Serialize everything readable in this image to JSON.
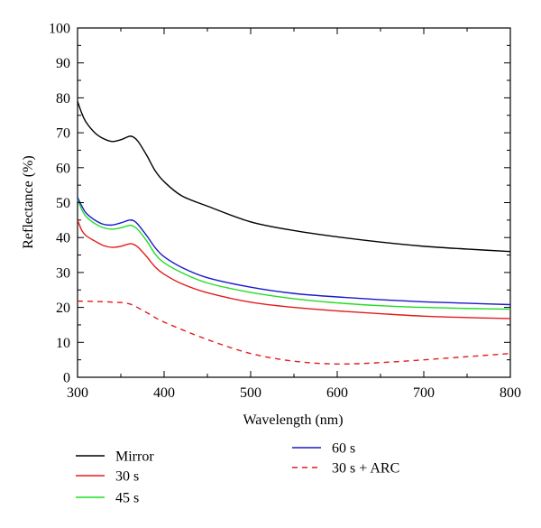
{
  "chart_data": {
    "type": "line",
    "xlabel": "Wavelength (nm)",
    "ylabel": "Reflectance (%)",
    "xlim": [
      300,
      800
    ],
    "ylim": [
      0,
      100
    ],
    "x_ticks": [
      300,
      400,
      500,
      600,
      700,
      800
    ],
    "y_ticks": [
      0,
      10,
      20,
      30,
      40,
      50,
      60,
      70,
      80,
      90,
      100
    ],
    "grid": false,
    "legend_position": "bottom",
    "series": [
      {
        "name": "Mirror",
        "color": "#000000",
        "dashed": false,
        "points": [
          [
            300,
            79
          ],
          [
            305,
            75.5
          ],
          [
            310,
            73
          ],
          [
            320,
            70
          ],
          [
            330,
            68.3
          ],
          [
            340,
            67.5
          ],
          [
            350,
            68
          ],
          [
            360,
            69
          ],
          [
            365,
            68.7
          ],
          [
            370,
            67.5
          ],
          [
            380,
            63.5
          ],
          [
            390,
            59
          ],
          [
            400,
            56
          ],
          [
            420,
            52
          ],
          [
            450,
            49
          ],
          [
            500,
            44.5
          ],
          [
            550,
            42
          ],
          [
            600,
            40.2
          ],
          [
            650,
            38.7
          ],
          [
            700,
            37.5
          ],
          [
            750,
            36.7
          ],
          [
            800,
            36
          ]
        ]
      },
      {
        "name": "30 s",
        "color": "#e31b1b",
        "dashed": false,
        "points": [
          [
            300,
            45
          ],
          [
            305,
            42
          ],
          [
            310,
            40.5
          ],
          [
            320,
            39
          ],
          [
            330,
            37.7
          ],
          [
            340,
            37.2
          ],
          [
            350,
            37.5
          ],
          [
            360,
            38.2
          ],
          [
            365,
            38
          ],
          [
            370,
            37.2
          ],
          [
            380,
            34.5
          ],
          [
            390,
            31.5
          ],
          [
            400,
            29.5
          ],
          [
            420,
            26.8
          ],
          [
            450,
            24.2
          ],
          [
            500,
            21.5
          ],
          [
            550,
            20
          ],
          [
            600,
            19
          ],
          [
            650,
            18.2
          ],
          [
            700,
            17.5
          ],
          [
            750,
            17.1
          ],
          [
            800,
            16.8
          ]
        ]
      },
      {
        "name": "45 s",
        "color": "#22dd22",
        "dashed": false,
        "points": [
          [
            300,
            51
          ],
          [
            305,
            48
          ],
          [
            310,
            46
          ],
          [
            320,
            44
          ],
          [
            330,
            42.8
          ],
          [
            340,
            42.4
          ],
          [
            350,
            42.8
          ],
          [
            360,
            43.5
          ],
          [
            365,
            43.2
          ],
          [
            370,
            42.2
          ],
          [
            380,
            39
          ],
          [
            390,
            35.2
          ],
          [
            400,
            32.8
          ],
          [
            420,
            30
          ],
          [
            450,
            27
          ],
          [
            500,
            24.3
          ],
          [
            550,
            22.5
          ],
          [
            600,
            21.3
          ],
          [
            650,
            20.5
          ],
          [
            700,
            20
          ],
          [
            750,
            19.7
          ],
          [
            800,
            19.5
          ]
        ]
      },
      {
        "name": "60 s",
        "color": "#1a1acc",
        "dashed": false,
        "points": [
          [
            300,
            51.5
          ],
          [
            305,
            49
          ],
          [
            310,
            47
          ],
          [
            320,
            45
          ],
          [
            330,
            43.8
          ],
          [
            340,
            43.6
          ],
          [
            350,
            44.2
          ],
          [
            360,
            45
          ],
          [
            365,
            44.8
          ],
          [
            370,
            43.7
          ],
          [
            380,
            40.5
          ],
          [
            390,
            37
          ],
          [
            400,
            34.5
          ],
          [
            420,
            31.5
          ],
          [
            450,
            28.5
          ],
          [
            500,
            25.8
          ],
          [
            550,
            24
          ],
          [
            600,
            23
          ],
          [
            650,
            22.2
          ],
          [
            700,
            21.6
          ],
          [
            750,
            21.2
          ],
          [
            800,
            20.8
          ]
        ]
      },
      {
        "name": "30 s + ARC",
        "color": "#e31b1b",
        "dashed": true,
        "points": [
          [
            300,
            21.8
          ],
          [
            320,
            21.7
          ],
          [
            340,
            21.5
          ],
          [
            360,
            21
          ],
          [
            380,
            18.5
          ],
          [
            400,
            15.8
          ],
          [
            450,
            10.8
          ],
          [
            500,
            6.8
          ],
          [
            550,
            4.6
          ],
          [
            600,
            3.8
          ],
          [
            650,
            4.2
          ],
          [
            700,
            5
          ],
          [
            750,
            5.9
          ],
          [
            800,
            6.8
          ]
        ]
      }
    ]
  }
}
